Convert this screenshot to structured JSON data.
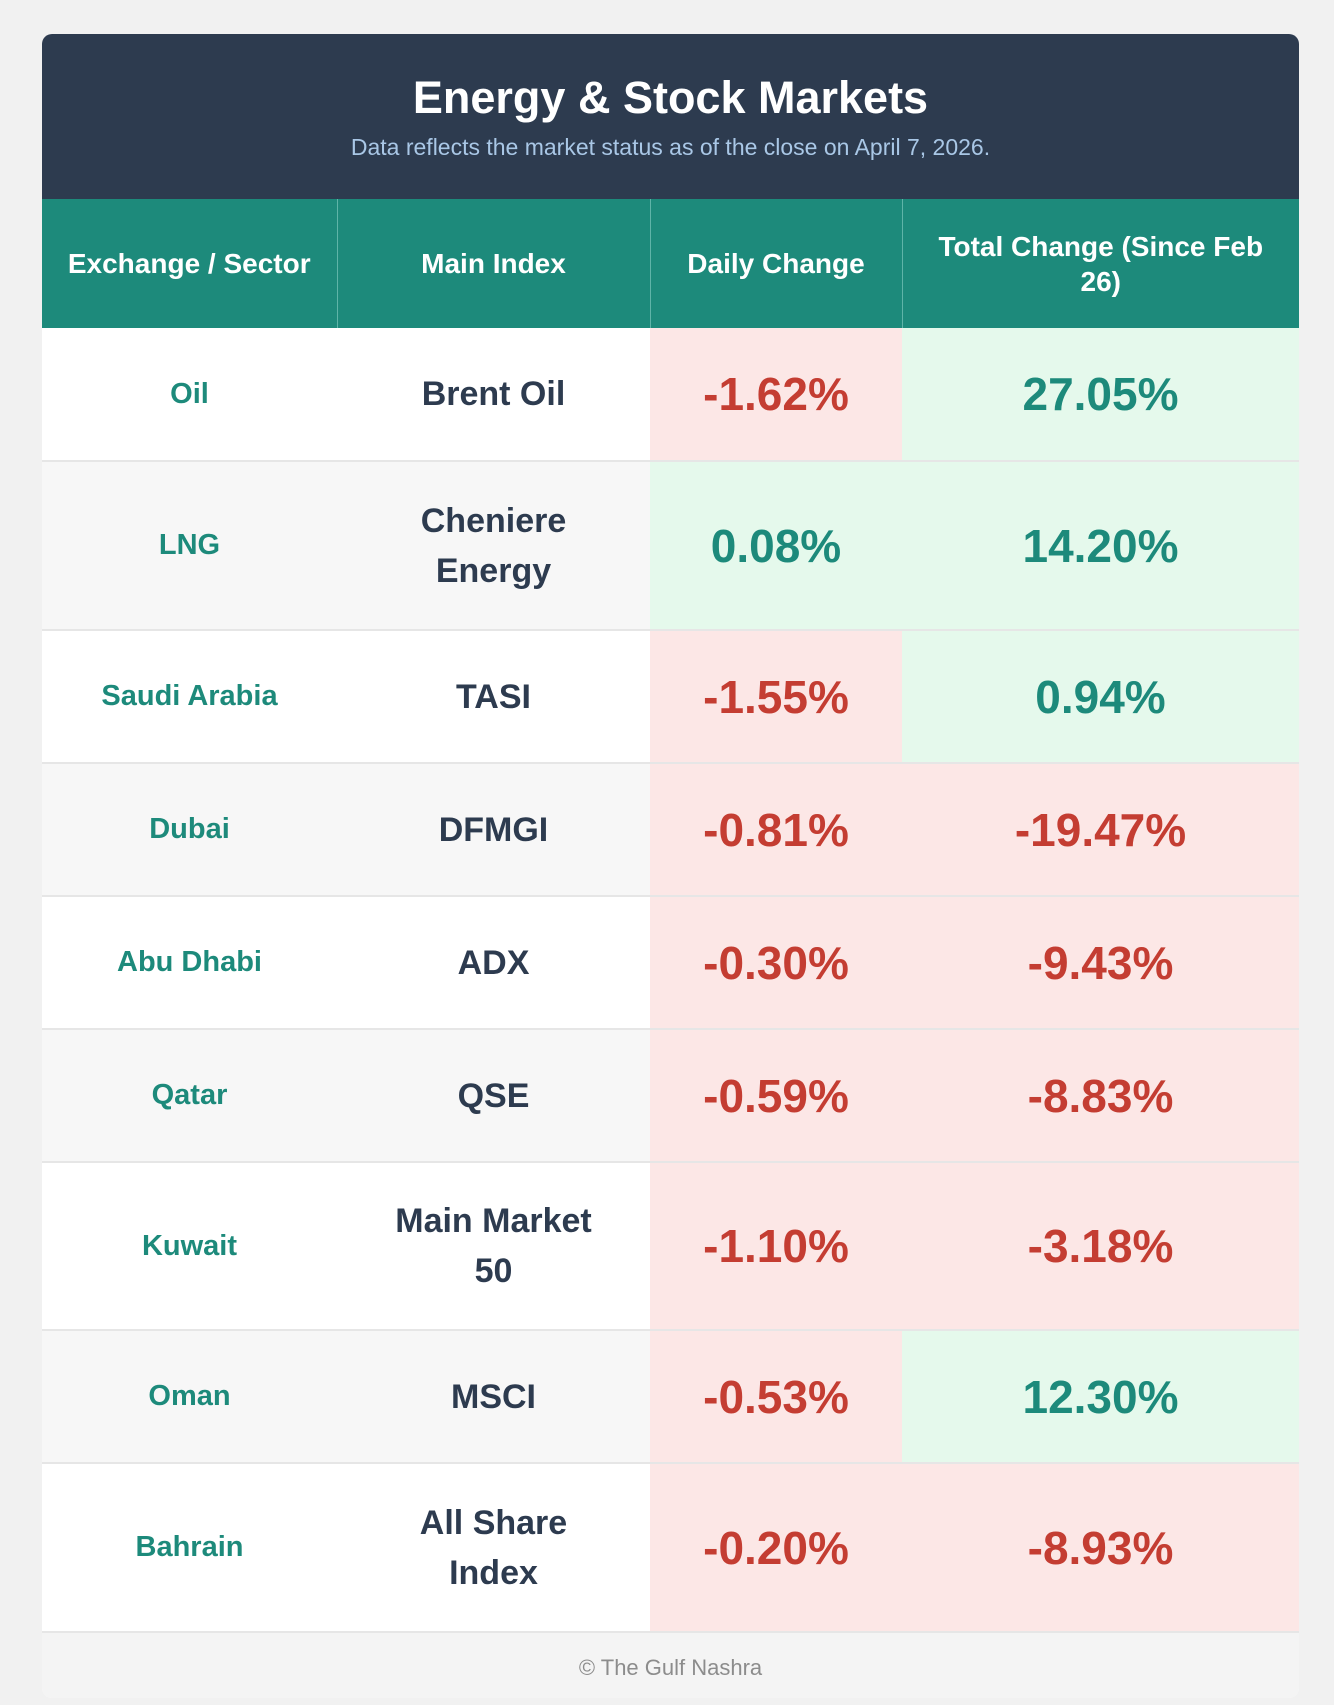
{
  "header": {
    "title": "Energy & Stock Markets",
    "subtitle": "Data reflects the market status as of the close on April 7, 2026."
  },
  "columns": [
    "Exchange / Sector",
    "Main Index",
    "Daily Change",
    "Total Change (Since Feb 26)"
  ],
  "rows": [
    {
      "sector": "Oil",
      "index": "Brent Oil",
      "daily": "-1.62%",
      "daily_dir": "neg",
      "total": "27.05%",
      "total_dir": "pos"
    },
    {
      "sector": "LNG",
      "index": "Cheniere Energy",
      "daily": "0.08%",
      "daily_dir": "pos",
      "total": "14.20%",
      "total_dir": "pos"
    },
    {
      "sector": "Saudi Arabia",
      "index": "TASI",
      "daily": "-1.55%",
      "daily_dir": "neg",
      "total": "0.94%",
      "total_dir": "pos"
    },
    {
      "sector": "Dubai",
      "index": "DFMGI",
      "daily": "-0.81%",
      "daily_dir": "neg",
      "total": "-19.47%",
      "total_dir": "neg"
    },
    {
      "sector": "Abu Dhabi",
      "index": "ADX",
      "daily": "-0.30%",
      "daily_dir": "neg",
      "total": "-9.43%",
      "total_dir": "neg"
    },
    {
      "sector": "Qatar",
      "index": "QSE",
      "daily": "-0.59%",
      "daily_dir": "neg",
      "total": "-8.83%",
      "total_dir": "neg"
    },
    {
      "sector": "Kuwait",
      "index": "Main Market 50",
      "daily": "-1.10%",
      "daily_dir": "neg",
      "total": "-3.18%",
      "total_dir": "neg"
    },
    {
      "sector": "Oman",
      "index": "MSCI",
      "daily": "-0.53%",
      "daily_dir": "neg",
      "total": "12.30%",
      "total_dir": "pos"
    },
    {
      "sector": "Bahrain",
      "index": "All Share Index",
      "daily": "-0.20%",
      "daily_dir": "neg",
      "total": "-8.93%",
      "total_dir": "neg"
    }
  ],
  "footer": "© The Gulf Nashra",
  "colors": {
    "header_bg": "#2d3b4f",
    "accent": "#1d8a7b",
    "negative": "#c43d32",
    "positive": "#1d8a7b"
  }
}
